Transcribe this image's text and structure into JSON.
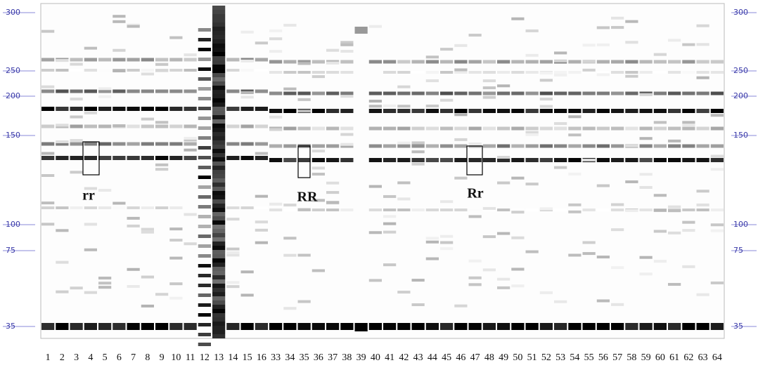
{
  "size_markers": [
    "300",
    "250",
    "200",
    "150",
    "100",
    "75",
    "35"
  ],
  "lanes": [
    "1",
    "2",
    "3",
    "4",
    "5",
    "6",
    "7",
    "8",
    "9",
    "10",
    "11",
    "12",
    "13",
    "14",
    "15",
    "16",
    "33",
    "34",
    "35",
    "36",
    "37",
    "38",
    "39",
    "40",
    "41",
    "42",
    "43",
    "44",
    "45",
    "46",
    "47",
    "48",
    "49",
    "50",
    "51",
    "52",
    "53",
    "54",
    "55",
    "56",
    "57",
    "58",
    "59",
    "60",
    "61",
    "62",
    "63",
    "64"
  ],
  "genotypes": [
    "rr",
    "RR",
    "Rr"
  ]
}
